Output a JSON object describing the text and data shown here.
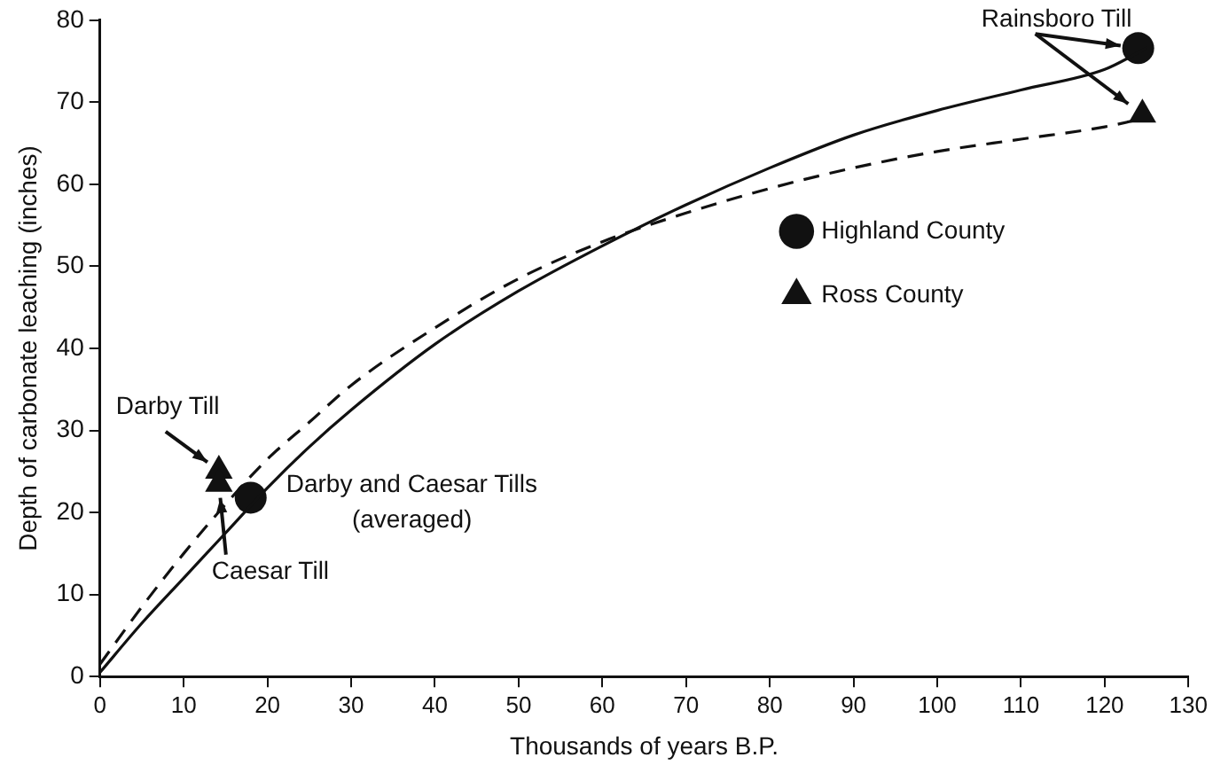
{
  "chart_data": {
    "type": "line",
    "xlabel": "Thousands of years B.P.",
    "ylabel": "Depth of carbonate leaching (inches)",
    "xlim": [
      0,
      130
    ],
    "xticks": [
      0,
      10,
      20,
      30,
      40,
      50,
      60,
      70,
      80,
      90,
      100,
      110,
      120,
      130
    ],
    "ylim": [
      0,
      80
    ],
    "yticks": [
      0,
      10,
      20,
      30,
      40,
      50,
      60,
      70,
      80
    ],
    "grid": false,
    "legend": "right",
    "series": [
      {
        "type": "line",
        "color": "#111111",
        "line_style": "solid",
        "marker": "none",
        "x": [
          0,
          5,
          10,
          15,
          20,
          25,
          30,
          40,
          50,
          60,
          70,
          80,
          90,
          100,
          110,
          120,
          125
        ],
        "values": [
          0.5,
          6.5,
          12,
          17.5,
          23,
          28,
          32.5,
          40.5,
          47,
          52.5,
          57.5,
          62,
          66,
          69,
          71.5,
          74,
          76.6
        ]
      },
      {
        "type": "line",
        "color": "#111111",
        "line_style": "dashed",
        "marker": "none",
        "x": [
          0,
          5,
          10,
          15,
          20,
          25,
          30,
          40,
          50,
          60,
          70,
          80,
          90,
          100,
          110,
          120,
          124.5
        ],
        "values": [
          1.5,
          8.5,
          15,
          21,
          26.5,
          31,
          35.5,
          42.5,
          48.5,
          53,
          56.5,
          59.5,
          62,
          64,
          65.5,
          67,
          68
        ]
      },
      {
        "name": "Highland County",
        "type": "scatter",
        "color": "#111111",
        "line_style": "solid",
        "marker": "circle",
        "x": [
          18,
          124
        ],
        "values": [
          21.8,
          76.6
        ]
      },
      {
        "name": "Ross County",
        "type": "scatter",
        "color": "#111111",
        "line_style": "dashed",
        "marker": "triangle",
        "x": [
          14.2,
          14.2,
          124.5
        ],
        "values": [
          25.1,
          23.5,
          68.5
        ]
      }
    ],
    "annotations": [
      {
        "text": "Rainsboro Till",
        "x": 124,
        "y": 76.6
      },
      {
        "text": "Darby Till",
        "x": 14.2,
        "y": 25.1
      },
      {
        "text": "Caesar Till",
        "x": 14.2,
        "y": 23.5
      },
      {
        "text": "Darby and Caesar Tills\n(averaged)",
        "x": 18,
        "y": 21.8
      }
    ]
  }
}
